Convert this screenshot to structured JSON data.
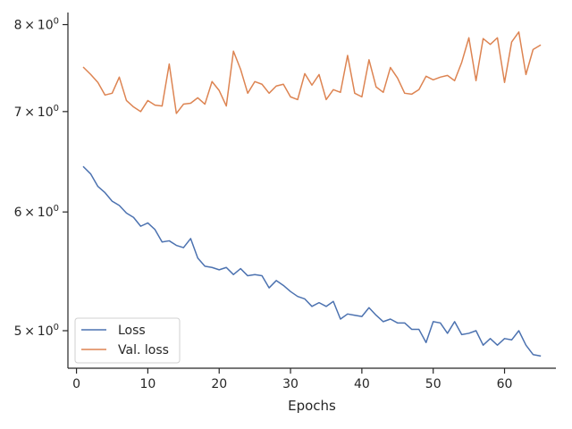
{
  "chart_data": {
    "type": "line",
    "xlabel": "Epochs",
    "ylabel": "",
    "y_scale": "log",
    "xlim": [
      -1.2,
      67.2
    ],
    "ylim": [
      4.72,
      8.15
    ],
    "x_ticks": [
      {
        "value": 0,
        "label": "0"
      },
      {
        "value": 10,
        "label": "10"
      },
      {
        "value": 20,
        "label": "20"
      },
      {
        "value": 30,
        "label": "30"
      },
      {
        "value": 40,
        "label": "40"
      },
      {
        "value": 50,
        "label": "50"
      },
      {
        "value": 60,
        "label": "60"
      }
    ],
    "y_ticks": [
      {
        "value": 5,
        "base": "5",
        "sep": "×",
        "exp_base": "10",
        "exp": "0"
      },
      {
        "value": 6,
        "base": "6",
        "sep": "×",
        "exp_base": "10",
        "exp": "0"
      },
      {
        "value": 7,
        "base": "7",
        "sep": "×",
        "exp_base": "10",
        "exp": "0"
      },
      {
        "value": 8,
        "base": "8",
        "sep": "×",
        "exp_base": "10",
        "exp": "0"
      }
    ],
    "legend_position": "lower-left",
    "grid": false,
    "x": [
      1,
      2,
      3,
      4,
      5,
      6,
      7,
      8,
      9,
      10,
      11,
      12,
      13,
      14,
      15,
      16,
      17,
      18,
      19,
      20,
      21,
      22,
      23,
      24,
      25,
      26,
      27,
      28,
      29,
      30,
      31,
      32,
      33,
      34,
      35,
      36,
      37,
      38,
      39,
      40,
      41,
      42,
      43,
      44,
      45,
      46,
      47,
      48,
      49,
      50,
      51,
      52,
      53,
      54,
      55,
      56,
      57,
      58,
      59,
      60,
      61,
      62,
      63,
      64,
      65
    ],
    "series": [
      {
        "name": "Loss",
        "color": "#4c72b0",
        "values": [
          6.43,
          6.36,
          6.24,
          6.18,
          6.1,
          6.06,
          5.99,
          5.95,
          5.87,
          5.9,
          5.84,
          5.73,
          5.74,
          5.7,
          5.68,
          5.76,
          5.59,
          5.52,
          5.51,
          5.49,
          5.51,
          5.45,
          5.5,
          5.44,
          5.45,
          5.44,
          5.34,
          5.4,
          5.36,
          5.31,
          5.27,
          5.25,
          5.19,
          5.22,
          5.19,
          5.23,
          5.09,
          5.13,
          5.12,
          5.11,
          5.18,
          5.12,
          5.07,
          5.09,
          5.06,
          5.06,
          5.01,
          5.01,
          4.91,
          5.07,
          5.06,
          4.98,
          5.07,
          4.97,
          4.98,
          5.0,
          4.89,
          4.94,
          4.89,
          4.94,
          4.93,
          5.0,
          4.89,
          4.82,
          4.81
        ]
      },
      {
        "name": "Val. loss",
        "color": "#dd8452",
        "values": [
          7.49,
          7.41,
          7.32,
          7.18,
          7.2,
          7.38,
          7.12,
          7.05,
          7.0,
          7.12,
          7.07,
          7.06,
          7.53,
          6.98,
          7.08,
          7.09,
          7.15,
          7.08,
          7.33,
          7.23,
          7.06,
          7.68,
          7.47,
          7.2,
          7.33,
          7.3,
          7.2,
          7.28,
          7.3,
          7.16,
          7.13,
          7.42,
          7.29,
          7.41,
          7.13,
          7.24,
          7.21,
          7.63,
          7.2,
          7.16,
          7.58,
          7.27,
          7.21,
          7.49,
          7.37,
          7.2,
          7.19,
          7.24,
          7.39,
          7.35,
          7.38,
          7.4,
          7.34,
          7.55,
          7.84,
          7.34,
          7.83,
          7.76,
          7.84,
          7.32,
          7.79,
          7.91,
          7.41,
          7.7,
          7.75
        ]
      }
    ]
  }
}
